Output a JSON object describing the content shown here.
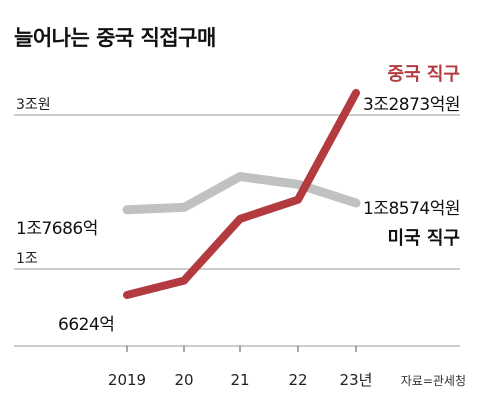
{
  "chart_data": {
    "type": "line",
    "title": "늘어나는 중국 직접구매",
    "categories": [
      "2019",
      "20",
      "21",
      "22",
      "23년"
    ],
    "y_unit_note": "억원",
    "y_ticks": [
      {
        "value": 10000,
        "label": "1조"
      },
      {
        "value": 30000,
        "label": "3조원"
      }
    ],
    "ylim": [
      0,
      40000
    ],
    "grid": true,
    "series": [
      {
        "name": "중국 직구",
        "color": "#b33a3f",
        "values": [
          6624,
          8500,
          16500,
          19000,
          32873
        ],
        "start_label": "6624억",
        "end_label": "3조2873억원"
      },
      {
        "name": "미국 직구",
        "color": "#c0c1c2",
        "values": [
          17686,
          18000,
          22000,
          21000,
          18574
        ],
        "start_label": "1조7686억",
        "end_label": "1조8574억원"
      }
    ],
    "source": "자료=관세청"
  }
}
